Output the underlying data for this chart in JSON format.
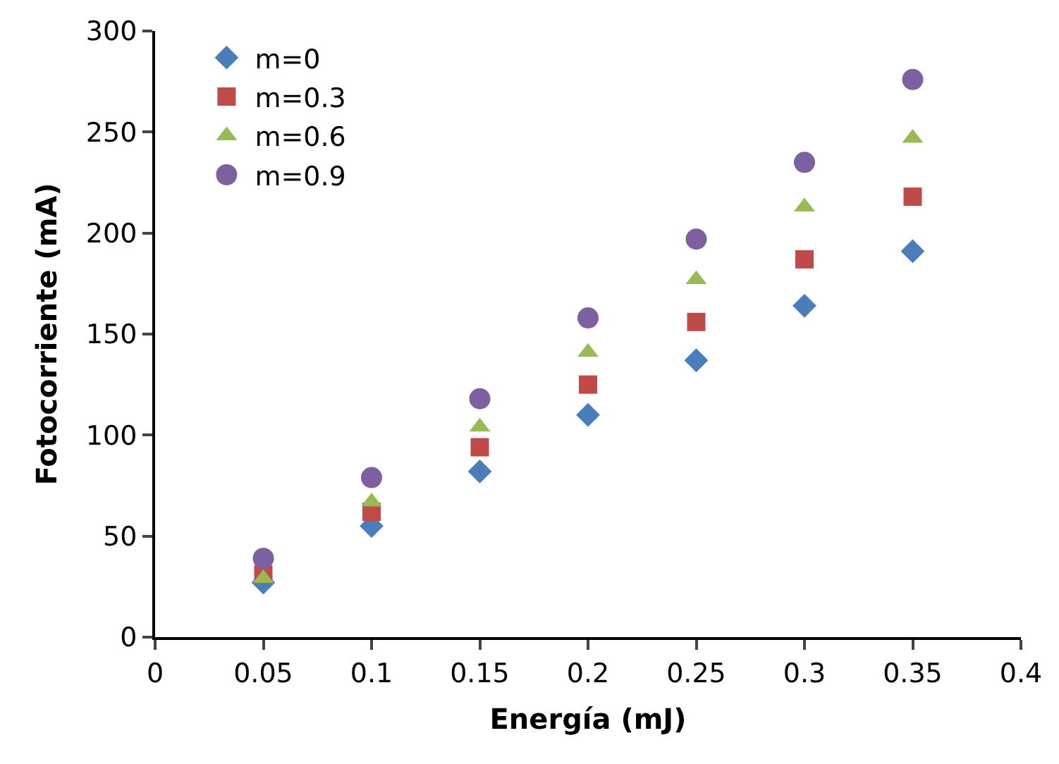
{
  "chart_data": {
    "type": "scatter",
    "xlabel": "Energía (mJ)",
    "ylabel": "Fotocorriente (mA)",
    "x": [
      0.05,
      0.1,
      0.15,
      0.2,
      0.25,
      0.3,
      0.35
    ],
    "series": [
      {
        "name": "m=0",
        "color": "#4a7ebb",
        "marker": "diamond",
        "values": [
          27,
          55,
          82,
          110,
          137,
          164,
          191
        ]
      },
      {
        "name": "m=0.3",
        "color": "#be4b48",
        "marker": "square",
        "values": [
          31,
          62,
          94,
          125,
          156,
          187,
          218
        ]
      },
      {
        "name": "m=0.6",
        "color": "#98b954",
        "marker": "triangle",
        "values": [
          29,
          67,
          104,
          141,
          177,
          213,
          247
        ]
      },
      {
        "name": "m=0.9",
        "color": "#7d60a0",
        "marker": "circle",
        "values": [
          39,
          79,
          118,
          158,
          197,
          235,
          276
        ]
      }
    ],
    "xlim": [
      0,
      0.4
    ],
    "xticks": [
      0,
      0.05,
      0.1,
      0.15,
      0.2,
      0.25,
      0.3,
      0.35,
      0.4
    ],
    "ylim": [
      0,
      300
    ],
    "yticks": [
      0,
      50,
      100,
      150,
      200,
      250,
      300
    ],
    "legend": "top left"
  }
}
